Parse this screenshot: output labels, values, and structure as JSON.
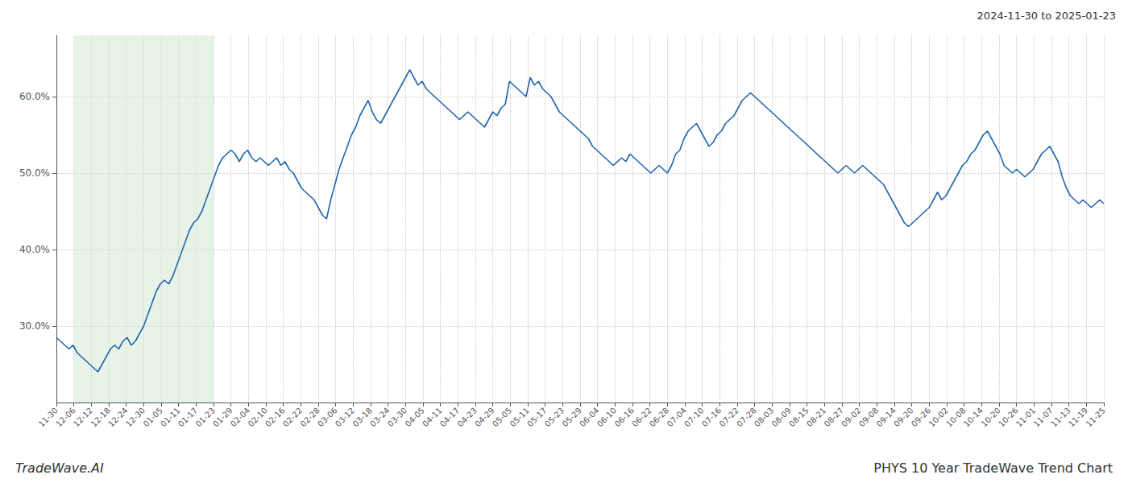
{
  "chart_data": {
    "type": "line",
    "title": "PHYS 10 Year TradeWave Trend Chart",
    "subtitle": "2024-11-30 to 2025-01-23",
    "annotations": [
      "TradeWave.AI"
    ],
    "color": "#2166ac",
    "grid": true,
    "ylim": [
      20,
      68
    ],
    "yticks": [
      {
        "value": 30.0,
        "label": "30.0%"
      },
      {
        "value": 40.0,
        "label": "40.0%"
      },
      {
        "value": 50.0,
        "label": "50.0%"
      },
      {
        "value": 60.0,
        "label": "60.0%"
      }
    ],
    "xticks": [
      "11-30",
      "12-06",
      "12-12",
      "12-18",
      "12-24",
      "12-30",
      "01-05",
      "01-11",
      "01-17",
      "01-23",
      "01-29",
      "02-04",
      "02-10",
      "02-16",
      "02-22",
      "02-28",
      "03-06",
      "03-12",
      "03-18",
      "03-24",
      "03-30",
      "04-05",
      "04-11",
      "04-17",
      "04-23",
      "04-29",
      "05-05",
      "05-11",
      "05-17",
      "05-23",
      "05-29",
      "06-04",
      "06-10",
      "06-16",
      "06-22",
      "06-28",
      "07-04",
      "07-10",
      "07-16",
      "07-22",
      "07-28",
      "08-03",
      "08-09",
      "08-15",
      "08-21",
      "08-27",
      "09-02",
      "09-08",
      "09-14",
      "09-20",
      "09-26",
      "10-02",
      "10-08",
      "10-14",
      "10-20",
      "10-26",
      "11-01",
      "11-07",
      "11-13",
      "11-19",
      "11-25"
    ],
    "shaded_region": {
      "start": "12-06",
      "end": "01-23",
      "color": "#d6ead6"
    },
    "values": [
      28.5,
      28.0,
      27.5,
      27.0,
      27.5,
      26.5,
      26.0,
      25.5,
      25.0,
      24.5,
      24.0,
      25.0,
      26.0,
      27.0,
      27.5,
      27.0,
      28.0,
      28.5,
      27.5,
      28.0,
      29.0,
      30.0,
      31.5,
      33.0,
      34.5,
      35.5,
      36.0,
      35.5,
      36.5,
      38.0,
      39.5,
      41.0,
      42.5,
      43.5,
      44.0,
      45.0,
      46.5,
      48.0,
      49.5,
      51.0,
      52.0,
      52.5,
      53.0,
      52.5,
      51.5,
      52.5,
      53.0,
      52.0,
      51.5,
      52.0,
      51.5,
      51.0,
      51.5,
      52.0,
      51.0,
      51.5,
      50.5,
      50.0,
      49.0,
      48.0,
      47.5,
      47.0,
      46.5,
      45.5,
      44.5,
      44.0,
      46.5,
      48.5,
      50.5,
      52.0,
      53.5,
      55.0,
      56.0,
      57.5,
      58.5,
      59.5,
      58.0,
      57.0,
      56.5,
      57.5,
      58.5,
      59.5,
      60.5,
      61.5,
      62.5,
      63.5,
      62.5,
      61.5,
      62.0,
      61.0,
      60.5,
      60.0,
      59.5,
      59.0,
      58.5,
      58.0,
      57.5,
      57.0,
      57.5,
      58.0,
      57.5,
      57.0,
      56.5,
      56.0,
      57.0,
      58.0,
      57.5,
      58.5,
      59.0,
      62.0,
      61.5,
      61.0,
      60.5,
      60.0,
      62.5,
      61.5,
      62.0,
      61.0,
      60.5,
      60.0,
      59.0,
      58.0,
      57.5,
      57.0,
      56.5,
      56.0,
      55.5,
      55.0,
      54.5,
      53.5,
      53.0,
      52.5,
      52.0,
      51.5,
      51.0,
      51.5,
      52.0,
      51.5,
      52.5,
      52.0,
      51.5,
      51.0,
      50.5,
      50.0,
      50.5,
      51.0,
      50.5,
      50.0,
      51.0,
      52.5,
      53.0,
      54.5,
      55.5,
      56.0,
      56.5,
      55.5,
      54.5,
      53.5,
      54.0,
      55.0,
      55.5,
      56.5,
      57.0,
      57.5,
      58.5,
      59.5,
      60.0,
      60.5,
      60.0,
      59.5,
      59.0,
      58.5,
      58.0,
      57.5,
      57.0,
      56.5,
      56.0,
      55.5,
      55.0,
      54.5,
      54.0,
      53.5,
      53.0,
      52.5,
      52.0,
      51.5,
      51.0,
      50.5,
      50.0,
      50.5,
      51.0,
      50.5,
      50.0,
      50.5,
      51.0,
      50.5,
      50.0,
      49.5,
      49.0,
      48.5,
      47.5,
      46.5,
      45.5,
      44.5,
      43.5,
      43.0,
      43.5,
      44.0,
      44.5,
      45.0,
      45.5,
      46.5,
      47.5,
      46.5,
      47.0,
      48.0,
      49.0,
      50.0,
      51.0,
      51.5,
      52.5,
      53.0,
      54.0,
      55.0,
      55.5,
      54.5,
      53.5,
      52.5,
      51.0,
      50.5,
      50.0,
      50.5,
      50.0,
      49.5,
      50.0,
      50.5,
      51.5,
      52.5,
      53.0,
      53.5,
      52.5,
      51.5,
      49.5,
      48.0,
      47.0,
      46.5,
      46.0,
      46.5,
      46.0,
      45.5,
      46.0,
      46.5,
      46.0
    ]
  }
}
